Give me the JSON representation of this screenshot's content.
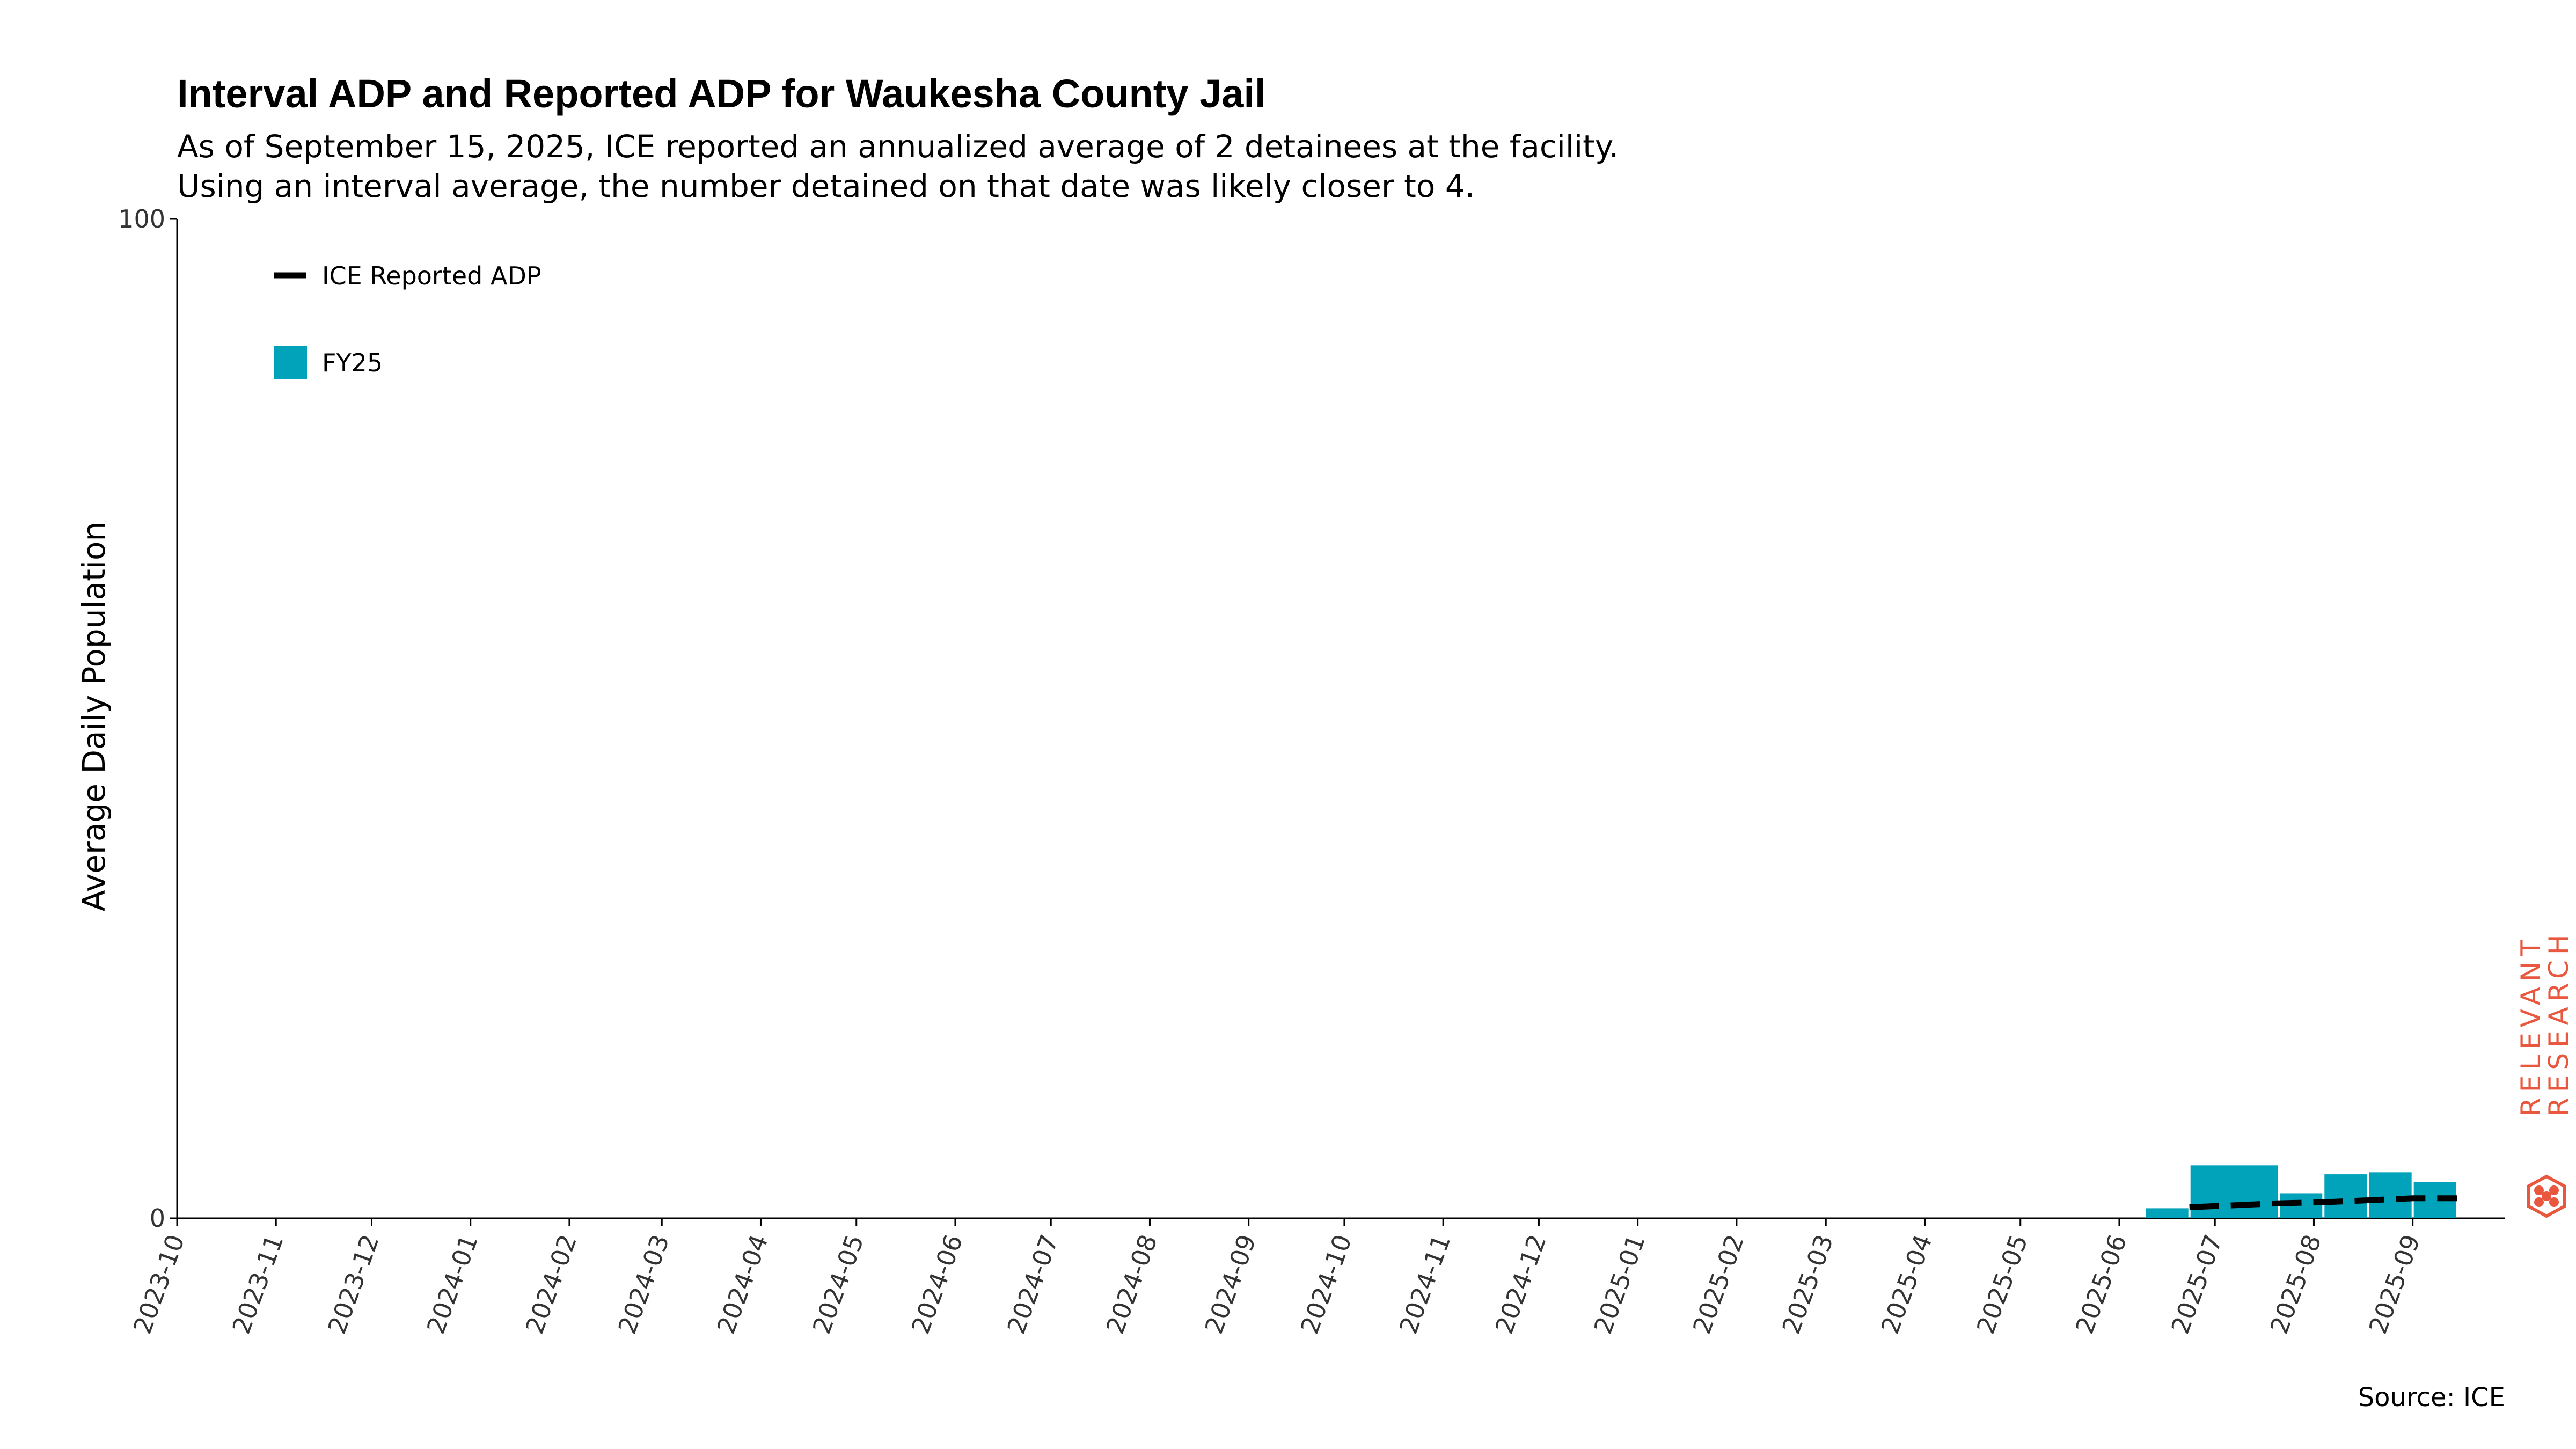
{
  "chart_data": {
    "type": "bar",
    "title": "Interval ADP and Reported ADP for Waukesha County Jail",
    "subtitle_lines": [
      "As of September 15, 2025, ICE reported an annualized average of 2 detainees at the facility.",
      "Using an interval average, the number detained on that date was likely closer to 4."
    ],
    "ylabel": "Average Daily Population",
    "ylim": [
      0,
      100
    ],
    "y_ticks": [
      "0",
      "100"
    ],
    "x_range": [
      "2023-10-01",
      "2025-09-30"
    ],
    "x_ticks": [
      "2023-10",
      "2023-11",
      "2023-12",
      "2024-01",
      "2024-02",
      "2024-03",
      "2024-04",
      "2024-05",
      "2024-06",
      "2024-07",
      "2024-08",
      "2024-09",
      "2024-10",
      "2024-11",
      "2024-12",
      "2025-01",
      "2025-02",
      "2025-03",
      "2025-04",
      "2025-05",
      "2025-06",
      "2025-07",
      "2025-08",
      "2025-09"
    ],
    "series": [
      {
        "name": "FY25",
        "kind": "interval_bars",
        "color": "#00a3b9",
        "bars": [
          {
            "start": "2025-06-09",
            "end": "2025-06-23",
            "value": 1
          },
          {
            "start": "2025-06-23",
            "end": "2025-07-21",
            "value": 5.3
          },
          {
            "start": "2025-07-21",
            "end": "2025-08-04",
            "value": 2.5
          },
          {
            "start": "2025-08-04",
            "end": "2025-08-18",
            "value": 4.4
          },
          {
            "start": "2025-08-18",
            "end": "2025-09-01",
            "value": 4.6
          },
          {
            "start": "2025-09-01",
            "end": "2025-09-15",
            "value": 3.6
          }
        ]
      },
      {
        "name": "ICE Reported ADP",
        "kind": "dashed_line",
        "color": "#000000",
        "points": [
          {
            "x": "2025-06-23",
            "y": 1.1
          },
          {
            "x": "2025-07-21",
            "y": 1.5
          },
          {
            "x": "2025-08-04",
            "y": 1.6
          },
          {
            "x": "2025-08-18",
            "y": 1.8
          },
          {
            "x": "2025-09-01",
            "y": 2
          },
          {
            "x": "2025-09-15",
            "y": 2
          }
        ]
      }
    ],
    "legend_position": "top-left",
    "grid": false
  },
  "source_text": "Source: ICE",
  "logo": {
    "line1": "RELEVANT",
    "line2": "RESEARCH",
    "color": "#e8573e"
  }
}
